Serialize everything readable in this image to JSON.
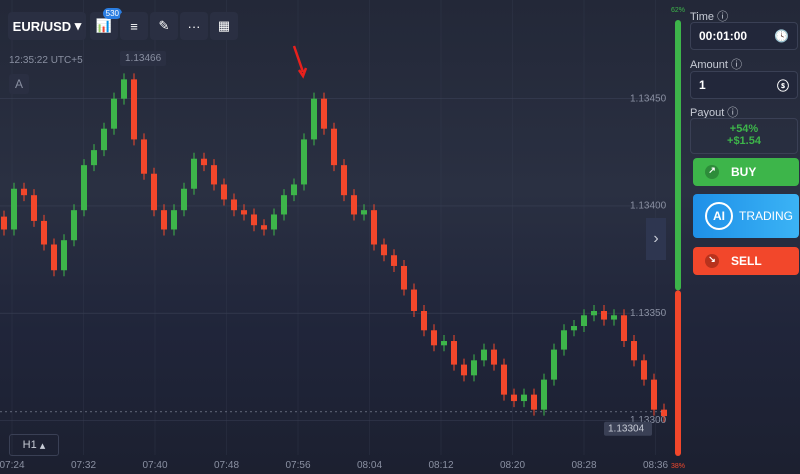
{
  "toolbar": {
    "pair": "EUR/USD",
    "badge": "530"
  },
  "clock": "12:35:22 UTC+5",
  "crosshair_price": "1.13466",
  "drawing_label": "A",
  "timeframe": "H1",
  "chart": {
    "type": "candlestick",
    "first_open": 1.13395,
    "closes": [
      1.13389,
      1.13408,
      1.13405,
      1.13393,
      1.13382,
      1.1337,
      1.13384,
      1.13398,
      1.13419,
      1.13426,
      1.13436,
      1.1345,
      1.13459,
      1.13431,
      1.13415,
      1.13398,
      1.13389,
      1.13398,
      1.13408,
      1.13422,
      1.13419,
      1.1341,
      1.13403,
      1.13398,
      1.13396,
      1.13391,
      1.13389,
      1.13396,
      1.13405,
      1.1341,
      1.13431,
      1.1345,
      1.13436,
      1.13419,
      1.13405,
      1.13396,
      1.13398,
      1.13382,
      1.13377,
      1.13372,
      1.13361,
      1.13351,
      1.13342,
      1.13335,
      1.13337,
      1.13326,
      1.13321,
      1.13328,
      1.13333,
      1.13326,
      1.13312,
      1.13309,
      1.13312,
      1.13305,
      1.13319,
      1.13333,
      1.13342,
      1.13344,
      1.13349,
      1.13351,
      1.13347,
      1.13349,
      1.13337,
      1.13328,
      1.13319,
      1.13305,
      1.13302
    ],
    "ylim": [
      1.13275,
      1.13496
    ],
    "yticks": [
      {
        "value": 1.1345,
        "label": "1.13450"
      },
      {
        "value": 1.134,
        "label": "1.13400"
      },
      {
        "value": 1.1335,
        "label": "1.13350"
      },
      {
        "value": 1.133,
        "label": "1.13300"
      }
    ],
    "xticks": [
      "07:24",
      "07:32",
      "07:40",
      "07:48",
      "07:56",
      "08:04",
      "08:12",
      "08:20",
      "08:28",
      "08:36"
    ],
    "current_price": {
      "value": 1.13304,
      "label": "1.13304"
    },
    "up_color": "#3db54a",
    "down_color": "#f2472b"
  },
  "sentiment": {
    "up": {
      "value": 62,
      "label": "62%"
    },
    "down": {
      "value": 38,
      "label": "38%"
    }
  },
  "sidebar": {
    "time_label": "Time",
    "time_value": "00:01:00",
    "amount_label": "Amount",
    "amount_value": "1",
    "payout_label": "Payout",
    "payout_percent": "+54%",
    "payout_amount": "+$1.54",
    "buy": "BUY",
    "ai_logo": "AI",
    "ai_trading": "TRADING",
    "sell": "SELL"
  }
}
